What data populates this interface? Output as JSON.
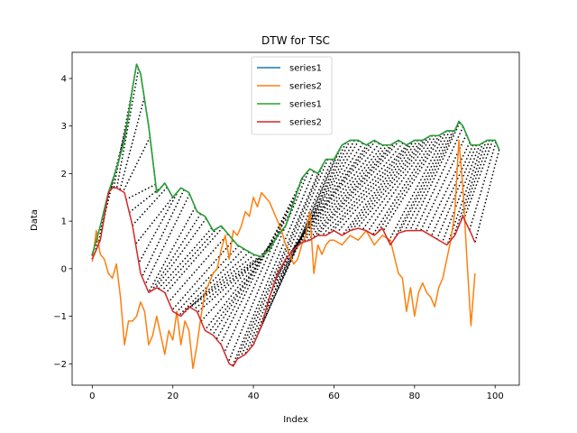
{
  "chart_data": {
    "type": "line",
    "title": "DTW for TSC",
    "xlabel": "Index",
    "ylabel": "Data",
    "xlim": [
      -5,
      106
    ],
    "ylim": [
      -2.45,
      4.55
    ],
    "xticks": [
      0,
      20,
      40,
      60,
      80,
      100
    ],
    "yticks": [
      -2,
      -1,
      0,
      1,
      2,
      3,
      4
    ],
    "grid": false,
    "legend_position": "top-center",
    "series": [
      {
        "name": "series1",
        "color": "#1f77b4",
        "x": [
          0,
          2,
          4,
          6,
          8,
          10,
          11,
          12,
          14,
          16,
          18,
          20,
          22,
          24,
          26,
          28,
          30,
          32,
          34,
          36,
          38,
          40,
          42,
          44,
          46,
          48,
          50,
          52,
          54,
          56,
          58,
          60,
          62,
          64,
          66,
          68,
          70,
          72,
          74,
          76,
          78,
          80,
          82,
          84,
          86,
          88,
          90,
          91,
          92,
          94,
          96,
          98,
          100,
          101
        ],
        "y": [
          0.3,
          0.9,
          1.6,
          2.1,
          2.7,
          3.8,
          4.3,
          4.1,
          3.0,
          1.6,
          1.8,
          1.5,
          1.7,
          1.6,
          1.2,
          1.1,
          0.8,
          0.9,
          0.7,
          0.5,
          0.4,
          0.3,
          0.25,
          0.4,
          0.7,
          0.9,
          1.4,
          1.9,
          2.1,
          2.0,
          2.3,
          2.3,
          2.6,
          2.7,
          2.7,
          2.6,
          2.7,
          2.6,
          2.6,
          2.7,
          2.6,
          2.7,
          2.7,
          2.8,
          2.8,
          2.9,
          2.9,
          3.1,
          3.0,
          2.6,
          2.6,
          2.7,
          2.7,
          2.5
        ]
      },
      {
        "name": "series2",
        "color": "#ff7f0e",
        "x": [
          0,
          1,
          2,
          3,
          4,
          5,
          6,
          7,
          8,
          9,
          10,
          11,
          12,
          13,
          14,
          15,
          16,
          17,
          18,
          19,
          20,
          21,
          22,
          23,
          24,
          25,
          26,
          27,
          28,
          29,
          30,
          31,
          32,
          33,
          34,
          35,
          36,
          37,
          38,
          39,
          40,
          41,
          42,
          43,
          44,
          45,
          46,
          47,
          48,
          49,
          50,
          51,
          52,
          53,
          54,
          55,
          56,
          57,
          58,
          59,
          60,
          62,
          64,
          66,
          68,
          70,
          72,
          74,
          76,
          77,
          78,
          79,
          80,
          81,
          82,
          83,
          84,
          85,
          86,
          87,
          88,
          89,
          90,
          91,
          92,
          93,
          94,
          95
        ],
        "y": [
          0.15,
          0.8,
          0.3,
          0.2,
          -0.1,
          -0.2,
          0.1,
          -0.6,
          -1.6,
          -1.1,
          -1.1,
          -1.0,
          -0.7,
          -0.9,
          -1.6,
          -1.4,
          -1.0,
          -1.4,
          -1.8,
          -1.3,
          -1.5,
          -0.9,
          -1.6,
          -1.1,
          -1.3,
          -2.1,
          -1.6,
          -1.0,
          -0.5,
          -0.3,
          -0.1,
          0.0,
          0.4,
          0.7,
          0.2,
          0.8,
          0.7,
          0.9,
          1.2,
          1.1,
          1.5,
          1.3,
          1.6,
          1.5,
          1.4,
          1.2,
          1.0,
          0.8,
          0.5,
          0.3,
          0.1,
          0.2,
          0.5,
          0.7,
          1.2,
          -0.1,
          0.5,
          0.3,
          0.5,
          0.6,
          0.6,
          0.5,
          0.7,
          0.6,
          0.8,
          0.5,
          0.7,
          0.6,
          -0.1,
          -0.2,
          -0.9,
          -0.4,
          -1.0,
          -0.5,
          -0.3,
          -0.5,
          -0.6,
          -0.8,
          -0.4,
          -0.2,
          0.2,
          0.6,
          1.2,
          2.7,
          1.7,
          0.2,
          -1.2,
          -0.1
        ]
      },
      {
        "name": "series1",
        "color": "#2ca02c",
        "x": [
          0,
          2,
          4,
          6,
          8,
          10,
          11,
          12,
          14,
          16,
          18,
          20,
          22,
          24,
          26,
          28,
          30,
          32,
          34,
          36,
          38,
          40,
          42,
          44,
          46,
          48,
          50,
          52,
          54,
          56,
          58,
          60,
          62,
          64,
          66,
          68,
          70,
          72,
          74,
          76,
          78,
          80,
          82,
          84,
          86,
          88,
          90,
          91,
          92,
          94,
          96,
          98,
          100,
          101
        ],
        "y": [
          0.3,
          0.9,
          1.6,
          2.1,
          2.7,
          3.8,
          4.3,
          4.1,
          3.0,
          1.6,
          1.8,
          1.5,
          1.7,
          1.6,
          1.2,
          1.1,
          0.8,
          0.9,
          0.7,
          0.5,
          0.4,
          0.3,
          0.25,
          0.4,
          0.7,
          0.9,
          1.4,
          1.9,
          2.1,
          2.0,
          2.3,
          2.3,
          2.6,
          2.7,
          2.7,
          2.6,
          2.7,
          2.6,
          2.6,
          2.7,
          2.6,
          2.7,
          2.7,
          2.8,
          2.8,
          2.9,
          2.9,
          3.1,
          3.0,
          2.6,
          2.6,
          2.7,
          2.7,
          2.5
        ]
      },
      {
        "name": "series2",
        "color": "#d62728",
        "x": [
          0,
          2,
          4,
          5,
          6,
          8,
          10,
          12,
          14,
          16,
          18,
          20,
          22,
          24,
          26,
          28,
          30,
          32,
          34,
          35,
          36,
          38,
          40,
          42,
          44,
          46,
          48,
          50,
          52,
          54,
          56,
          58,
          60,
          62,
          64,
          66,
          68,
          70,
          72,
          74,
          76,
          78,
          80,
          82,
          84,
          86,
          88,
          90,
          92,
          94,
          95
        ],
        "y": [
          0.2,
          0.6,
          1.6,
          1.7,
          1.7,
          1.6,
          0.9,
          -0.1,
          -0.5,
          -0.4,
          -0.5,
          -0.9,
          -1.0,
          -0.8,
          -0.9,
          -1.3,
          -1.4,
          -1.6,
          -2.0,
          -2.05,
          -1.9,
          -1.8,
          -1.6,
          -1.2,
          -0.6,
          -0.1,
          0.2,
          0.4,
          0.55,
          0.6,
          0.7,
          0.7,
          0.8,
          0.7,
          0.8,
          0.85,
          0.8,
          0.7,
          0.85,
          0.5,
          0.75,
          0.8,
          0.8,
          0.8,
          0.7,
          0.6,
          0.5,
          0.7,
          1.1,
          0.75,
          0.55
        ]
      }
    ],
    "warping_style": {
      "color": "#000000",
      "dash": "dotted"
    }
  }
}
